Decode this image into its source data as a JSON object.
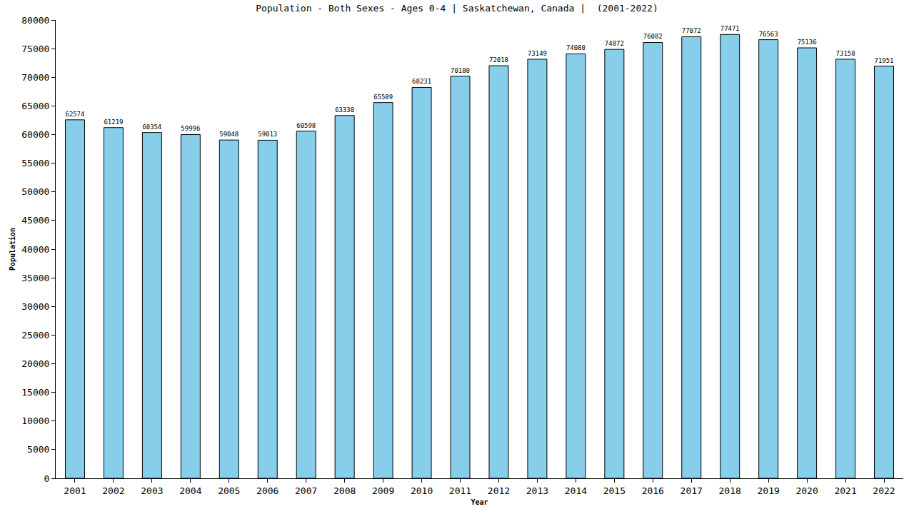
{
  "chart_data": {
    "type": "bar",
    "title": "Population - Both Sexes - Ages 0-4 | Saskatchewan, Canada |  (2001-2022)",
    "x_label": "Year",
    "y_label": "Population",
    "categories": [
      "2001",
      "2002",
      "2003",
      "2004",
      "2005",
      "2006",
      "2007",
      "2008",
      "2009",
      "2010",
      "2011",
      "2012",
      "2013",
      "2014",
      "2015",
      "2016",
      "2017",
      "2018",
      "2019",
      "2020",
      "2021",
      "2022"
    ],
    "values": [
      62574,
      61219,
      60354,
      59996,
      59048,
      59013,
      60598,
      63330,
      65589,
      68231,
      70180,
      72018,
      73149,
      74080,
      74872,
      76082,
      77072,
      77471,
      76563,
      75136,
      73158,
      71951
    ],
    "color": "#87ceeb",
    "ylim": [
      0,
      80000
    ],
    "yticks": [
      0,
      5000,
      10000,
      15000,
      20000,
      25000,
      30000,
      35000,
      40000,
      45000,
      50000,
      55000,
      60000,
      65000,
      70000,
      75000,
      80000
    ],
    "grid": false,
    "data_labels": true
  }
}
